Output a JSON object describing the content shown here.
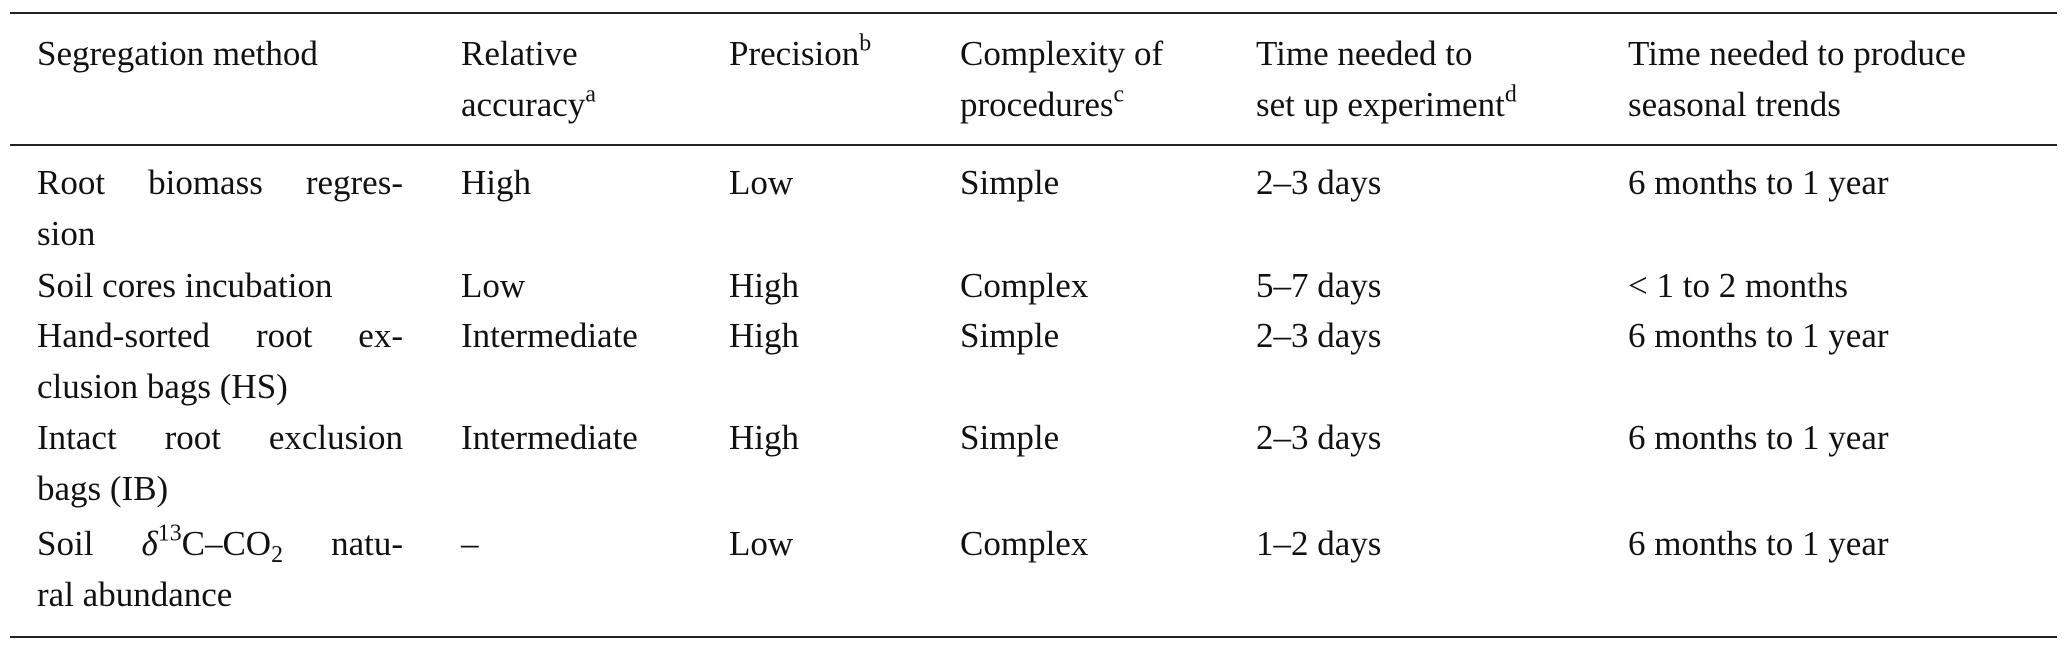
{
  "table": {
    "header": [
      "Segregation method",
      [
        "Relative",
        [
          {
            "text": "accuracy"
          },
          {
            "text": "a",
            "style": "sup"
          }
        ]
      ],
      [
        [
          {
            "text": "Precision"
          },
          {
            "text": "b",
            "style": "sup"
          }
        ]
      ],
      [
        "Complexity of",
        [
          {
            "text": "procedures"
          },
          {
            "text": "c",
            "style": "sup"
          }
        ]
      ],
      [
        "Time needed to",
        [
          {
            "text": "set up experiment"
          },
          {
            "text": "d",
            "style": "sup"
          }
        ]
      ],
      [
        "Time needed to produce",
        "seasonal trends"
      ]
    ],
    "rows": [
      [
        [
          "Root biomass regres-",
          "sion"
        ],
        "High",
        "Low",
        "Simple",
        "2–3 days",
        "6 months to 1 year"
      ],
      [
        "Soil cores incubation",
        "Low",
        "High",
        "Complex",
        "5–7 days",
        "< 1 to 2 months"
      ],
      [
        [
          "Hand-sorted root ex-",
          "clusion bags (HS)"
        ],
        "Intermediate",
        "High",
        "Simple",
        "2–3 days",
        "6 months to 1 year"
      ],
      [
        [
          "Intact root exclusion",
          "bags (IB)"
        ],
        "Intermediate",
        "High",
        "Simple",
        "2–3 days",
        "6 months to 1 year"
      ],
      [
        [
          [
            {
              "text": "Soil "
            },
            {
              "text": "δ",
              "style": "italic"
            },
            {
              "text": "13",
              "style": "sup"
            },
            {
              "text": "C–CO"
            },
            {
              "text": "2",
              "style": "sub"
            },
            {
              "text": " natu-"
            }
          ],
          "ral abundance"
        ],
        "–",
        "Low",
        "Complex",
        "1–2 days",
        "6 months to 1 year"
      ]
    ]
  }
}
